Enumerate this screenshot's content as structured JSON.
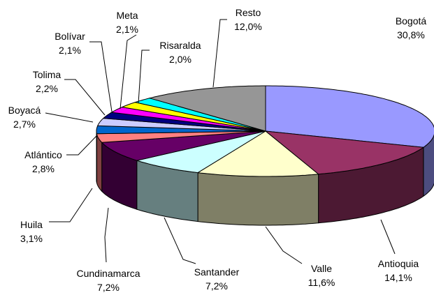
{
  "chart_data": {
    "type": "pie",
    "categories": [
      "Bogotá",
      "Antioquia",
      "Valle",
      "Santander",
      "Cundinamarca",
      "Huila",
      "Atlántico",
      "Boyacá",
      "Tolima",
      "Bolívar",
      "Meta",
      "Risaralda",
      "Resto"
    ],
    "values": [
      30.8,
      14.1,
      11.6,
      7.2,
      7.2,
      3.1,
      2.8,
      2.7,
      2.2,
      2.1,
      2.1,
      2.0,
      12.0
    ],
    "value_labels": [
      "30,8%",
      "14,1%",
      "11,6%",
      "7,2%",
      "7,2%",
      "3,1%",
      "2,8%",
      "2,7%",
      "2,2%",
      "2,1%",
      "2,1%",
      "2,0%",
      "12,0%"
    ],
    "colors": [
      "#9999ff",
      "#993366",
      "#ffffcc",
      "#ccffff",
      "#660066",
      "#ff8080",
      "#0066cc",
      "#ccccff",
      "#000080",
      "#ff00ff",
      "#ffff00",
      "#00ffff",
      "#969696"
    ]
  }
}
